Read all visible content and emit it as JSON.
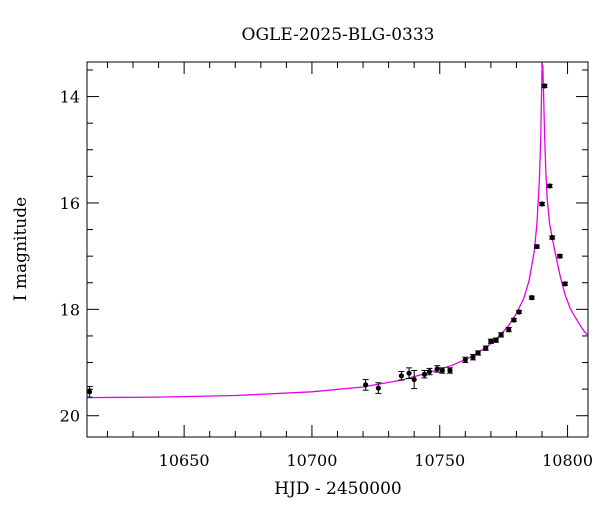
{
  "chart_data": {
    "type": "scatter",
    "title": "OGLE-2025-BLG-0333",
    "xlabel": "HJD - 2450000",
    "ylabel": "I magnitude",
    "xlim": [
      10612,
      10808
    ],
    "ylim": [
      20.4,
      13.35
    ],
    "y_inverted": true,
    "x_ticks_major": [
      10650,
      10700,
      10750,
      10800
    ],
    "y_ticks_major": [
      14,
      16,
      18,
      20
    ],
    "x_tick_labels": [
      "10650",
      "10700",
      "10750",
      "10800"
    ],
    "y_tick_labels": [
      "14",
      "16",
      "18",
      "20"
    ],
    "grid": false,
    "colors": {
      "points": "#000000",
      "model": "#e600e6"
    },
    "series": [
      {
        "kind": "points_with_errorbars",
        "x": [
          10613,
          10721,
          10726,
          10735,
          10738,
          10740,
          10744,
          10746,
          10749,
          10751,
          10754,
          10760,
          10763,
          10765,
          10768,
          10770,
          10772,
          10774,
          10777,
          10779,
          10781,
          10786,
          10788,
          10790,
          10791,
          10793,
          10794,
          10797,
          10799
        ],
        "y": [
          19.55,
          19.42,
          19.48,
          19.25,
          19.2,
          19.32,
          19.22,
          19.17,
          19.12,
          19.15,
          19.15,
          18.95,
          18.9,
          18.82,
          18.73,
          18.6,
          18.58,
          18.48,
          18.38,
          18.2,
          18.05,
          17.78,
          16.82,
          16.02,
          13.8,
          15.68,
          16.65,
          17.0,
          17.52
        ],
        "err": [
          0.1,
          0.1,
          0.1,
          0.08,
          0.1,
          0.17,
          0.07,
          0.06,
          0.06,
          0.05,
          0.05,
          0.05,
          0.05,
          0.04,
          0.04,
          0.04,
          0.04,
          0.04,
          0.04,
          0.03,
          0.03,
          0.03,
          0.03,
          0.03,
          0.03,
          0.03,
          0.03,
          0.03,
          0.03
        ]
      },
      {
        "kind": "model_curve",
        "x": [
          10612,
          10640,
          10670,
          10700,
          10720,
          10735,
          10745,
          10755,
          10762,
          10768,
          10773,
          10777,
          10780,
          10783,
          10785,
          10787,
          10788,
          10789,
          10789.5,
          10790,
          10790.3,
          10790.6,
          10791,
          10791.5,
          10792,
          10793,
          10795,
          10797,
          10799,
          10801,
          10803,
          10806,
          10808
        ],
        "y": [
          19.66,
          19.65,
          19.62,
          19.55,
          19.46,
          19.33,
          19.2,
          19.05,
          18.9,
          18.72,
          18.52,
          18.3,
          18.08,
          17.78,
          17.45,
          16.9,
          16.4,
          15.55,
          14.8,
          13.5,
          13.4,
          13.9,
          14.7,
          15.4,
          15.9,
          16.4,
          16.9,
          17.35,
          17.72,
          17.98,
          18.15,
          18.38,
          18.5
        ]
      }
    ]
  }
}
